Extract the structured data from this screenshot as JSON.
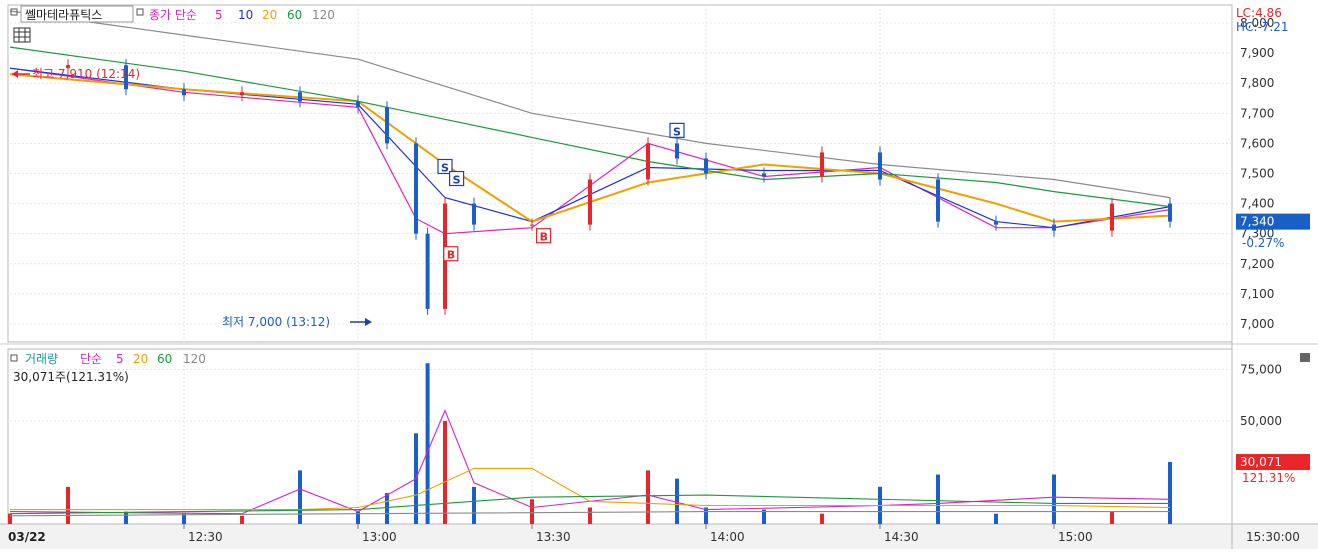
{
  "price_panel": {
    "stock_name": "쎌마테라퓨틱스",
    "indicator_label": "종가 단순",
    "ma_periods": [
      "5",
      "10",
      "20",
      "60",
      "120"
    ],
    "ma_colors": [
      "#e020c0",
      "#2030e0",
      "#f0a000",
      "#1a9a3a",
      "#8a8a8a"
    ],
    "lc_label": "LC:4.86",
    "hc_label": "HC:-7.21",
    "high_marker": "최고 7,910 (12:14)",
    "low_marker": "최저 7,000 (13:12)",
    "current_price": "7,340",
    "change_pct": "-0.27%"
  },
  "volume_panel": {
    "title": "거래량",
    "ma_label": "단순",
    "ma_periods": [
      "5",
      "20",
      "60",
      "120"
    ],
    "current_volume_text": "30,071주(121.31%)",
    "current_volume": "30,071",
    "current_ratio": "121.31%"
  },
  "x_axis": {
    "date_label": "03/22",
    "ticks": [
      "12:30",
      "13:00",
      "13:30",
      "14:00",
      "14:30",
      "15:00",
      "15:30:00"
    ]
  },
  "signals": [
    "S",
    "S",
    "S",
    "B",
    "B"
  ],
  "colors": {
    "up": "#e8262a",
    "down": "#1a5fc8",
    "current_box": "#1a5fc8",
    "volume_box": "#e8262a"
  },
  "chart_data": [
    {
      "type": "candlestick",
      "title": "쎌마테라퓨틱스",
      "y_ticks": [
        7000,
        7100,
        7200,
        7300,
        7400,
        7500,
        7600,
        7700,
        7800,
        7900,
        8000
      ],
      "ylim": [
        6940,
        8060
      ],
      "x_ticks": [
        "12:30",
        "13:00",
        "13:30",
        "14:00",
        "14:30",
        "15:00",
        "15:30:00"
      ],
      "time_range": [
        "12:00",
        "15:30"
      ],
      "high": {
        "value": 7910,
        "time": "12:14"
      },
      "low": {
        "value": 7000,
        "time": "13:12"
      },
      "last": 7340,
      "change_pct": -0.27,
      "series": [
        {
          "name": "종가",
          "x": [
            "12:00",
            "12:10",
            "12:20",
            "12:30",
            "12:40",
            "12:50",
            "13:00",
            "13:05",
            "13:10",
            "13:12",
            "13:15",
            "13:20",
            "13:30",
            "13:40",
            "13:50",
            "13:55",
            "14:00",
            "14:10",
            "14:20",
            "14:30",
            "14:40",
            "14:50",
            "15:00",
            "15:10",
            "15:20"
          ],
          "values": [
            7850,
            7860,
            7780,
            7760,
            7770,
            7740,
            7720,
            7600,
            7300,
            7050,
            7400,
            7330,
            7330,
            7480,
            7600,
            7550,
            7500,
            7490,
            7570,
            7480,
            7340,
            7330,
            7310,
            7400,
            7340
          ]
        },
        {
          "name": "5",
          "x": [
            "12:00",
            "12:30",
            "13:00",
            "13:10",
            "13:15",
            "13:30",
            "13:50",
            "14:10",
            "14:30",
            "14:50",
            "15:00",
            "15:20"
          ],
          "values": [
            7850,
            7770,
            7720,
            7350,
            7300,
            7320,
            7600,
            7490,
            7520,
            7320,
            7320,
            7380
          ]
        },
        {
          "name": "10",
          "x": [
            "12:00",
            "12:30",
            "13:00",
            "13:15",
            "13:30",
            "13:50",
            "14:10",
            "14:30",
            "14:50",
            "15:00",
            "15:20"
          ],
          "values": [
            7850,
            7780,
            7730,
            7420,
            7340,
            7520,
            7510,
            7510,
            7340,
            7320,
            7390
          ]
        },
        {
          "name": "20",
          "x": [
            "12:00",
            "12:30",
            "13:00",
            "13:15",
            "13:30",
            "13:50",
            "14:10",
            "14:30",
            "14:50",
            "15:00",
            "15:20"
          ],
          "values": [
            7830,
            7780,
            7740,
            7530,
            7340,
            7470,
            7530,
            7500,
            7400,
            7340,
            7360
          ]
        },
        {
          "name": "60",
          "x": [
            "12:00",
            "12:30",
            "13:00",
            "13:30",
            "13:50",
            "14:10",
            "14:30",
            "14:50",
            "15:00",
            "15:20"
          ],
          "values": [
            7920,
            7840,
            7740,
            7620,
            7540,
            7480,
            7500,
            7470,
            7440,
            7390
          ]
        },
        {
          "name": "120",
          "x": [
            "12:00",
            "12:30",
            "13:00",
            "13:30",
            "14:00",
            "14:30",
            "15:00",
            "15:20"
          ],
          "values": [
            8040,
            7960,
            7880,
            7700,
            7600,
            7530,
            7480,
            7420
          ]
        }
      ]
    },
    {
      "type": "bar",
      "title": "거래량",
      "y_ticks": [
        50000,
        75000
      ],
      "ylim": [
        0,
        82000
      ],
      "last": 30071,
      "last_ratio_pct": 121.31,
      "x": [
        "12:00",
        "12:10",
        "12:20",
        "12:30",
        "12:40",
        "12:50",
        "13:00",
        "13:05",
        "13:10",
        "13:12",
        "13:15",
        "13:20",
        "13:30",
        "13:40",
        "13:50",
        "13:55",
        "14:00",
        "14:10",
        "14:20",
        "14:30",
        "14:40",
        "14:50",
        "15:00",
        "15:10",
        "15:20"
      ],
      "values": [
        5000,
        18000,
        6000,
        5000,
        4000,
        26000,
        6000,
        15000,
        44000,
        78000,
        50000,
        18000,
        12000,
        8000,
        26000,
        22000,
        8000,
        7000,
        5000,
        18000,
        24000,
        5000,
        24000,
        6000,
        30071
      ],
      "series": [
        {
          "name": "5",
          "x": [
            "12:00",
            "12:40",
            "12:50",
            "13:00",
            "13:10",
            "13:15",
            "13:20",
            "13:30",
            "13:50",
            "14:00",
            "14:30",
            "14:40",
            "15:00",
            "15:20"
          ],
          "values": [
            6000,
            5000,
            17000,
            6000,
            22000,
            55000,
            20000,
            8000,
            14000,
            7000,
            9000,
            10000,
            13000,
            12000
          ]
        },
        {
          "name": "20",
          "x": [
            "12:00",
            "12:50",
            "13:00",
            "13:10",
            "13:20",
            "13:30",
            "13:40",
            "14:00",
            "14:30",
            "15:00",
            "15:20"
          ],
          "values": [
            7000,
            7000,
            8000,
            14000,
            27000,
            27000,
            11000,
            9000,
            9000,
            9000,
            8000
          ]
        },
        {
          "name": "60",
          "x": [
            "12:00",
            "13:00",
            "13:30",
            "14:00",
            "14:30",
            "15:00",
            "15:20"
          ],
          "values": [
            5000,
            7000,
            13000,
            14000,
            12000,
            10000,
            10000
          ]
        },
        {
          "name": "120",
          "x": [
            "12:00",
            "13:00",
            "14:00",
            "15:00",
            "15:20"
          ],
          "values": [
            4000,
            5000,
            6000,
            6000,
            6000
          ]
        }
      ]
    }
  ]
}
